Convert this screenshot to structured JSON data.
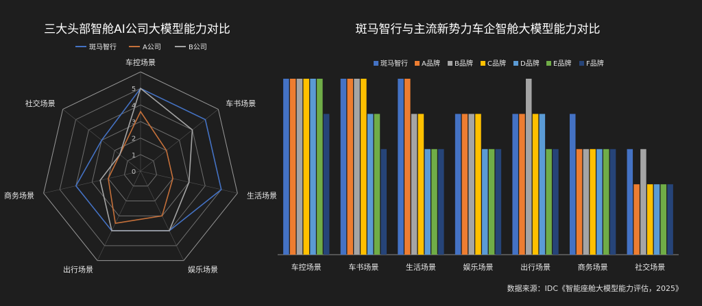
{
  "source_note": "数据来源：IDC《智能座舱大模型能力评估，2025》",
  "chart_data": [
    {
      "type": "radar",
      "title": "三大头部智舱AI公司大模型能力对比",
      "axes": [
        "车控场景",
        "车书场景",
        "生活场景",
        "娱乐场景",
        "出行场景",
        "商务场景",
        "社交场景"
      ],
      "radial_ticks": [
        "0",
        "1",
        "2",
        "3",
        "4",
        "5"
      ],
      "rlim": [
        0,
        5
      ],
      "legend": "top",
      "series": [
        {
          "name": "斑马智行",
          "color": "#4472c4",
          "values": [
            5,
            5,
            5,
            4,
            4,
            4,
            3
          ]
        },
        {
          "name": "A公司",
          "color": "#c5703a",
          "values": [
            3.6,
            2,
            2,
            3,
            3.5,
            2,
            1.6
          ]
        },
        {
          "name": "B公司",
          "color": "#a5a5a5",
          "values": [
            5,
            4,
            3,
            4,
            4,
            2.5,
            1.6
          ]
        }
      ]
    },
    {
      "type": "bar",
      "title": "斑马智行与主流新势力车企智舱大模型能力对比",
      "categories": [
        "车控场景",
        "车书场景",
        "生活场景",
        "娱乐场景",
        "出行场景",
        "商务场景",
        "社交场景"
      ],
      "ylim": [
        0,
        5
      ],
      "grid": false,
      "legend": "top",
      "series": [
        {
          "name": "斑马智行",
          "color": "#4472c4",
          "values": [
            5,
            5,
            5,
            4,
            4,
            4,
            3
          ]
        },
        {
          "name": "A品牌",
          "color": "#ed7d31",
          "values": [
            5,
            5,
            5,
            4,
            4,
            3,
            2
          ]
        },
        {
          "name": "B品牌",
          "color": "#a5a5a5",
          "values": [
            5,
            5,
            4,
            4,
            5,
            3,
            3
          ]
        },
        {
          "name": "C品牌",
          "color": "#ffc000",
          "values": [
            5,
            5,
            4,
            4,
            4,
            3,
            2
          ]
        },
        {
          "name": "D品牌",
          "color": "#5b9bd5",
          "values": [
            5,
            4,
            3,
            3,
            4,
            3,
            2
          ]
        },
        {
          "name": "E品牌",
          "color": "#70ad47",
          "values": [
            5,
            4,
            3,
            3,
            3,
            3,
            2
          ]
        },
        {
          "name": "F品牌",
          "color": "#264478",
          "values": [
            4,
            3,
            3,
            3,
            3,
            3,
            2
          ]
        }
      ]
    }
  ]
}
